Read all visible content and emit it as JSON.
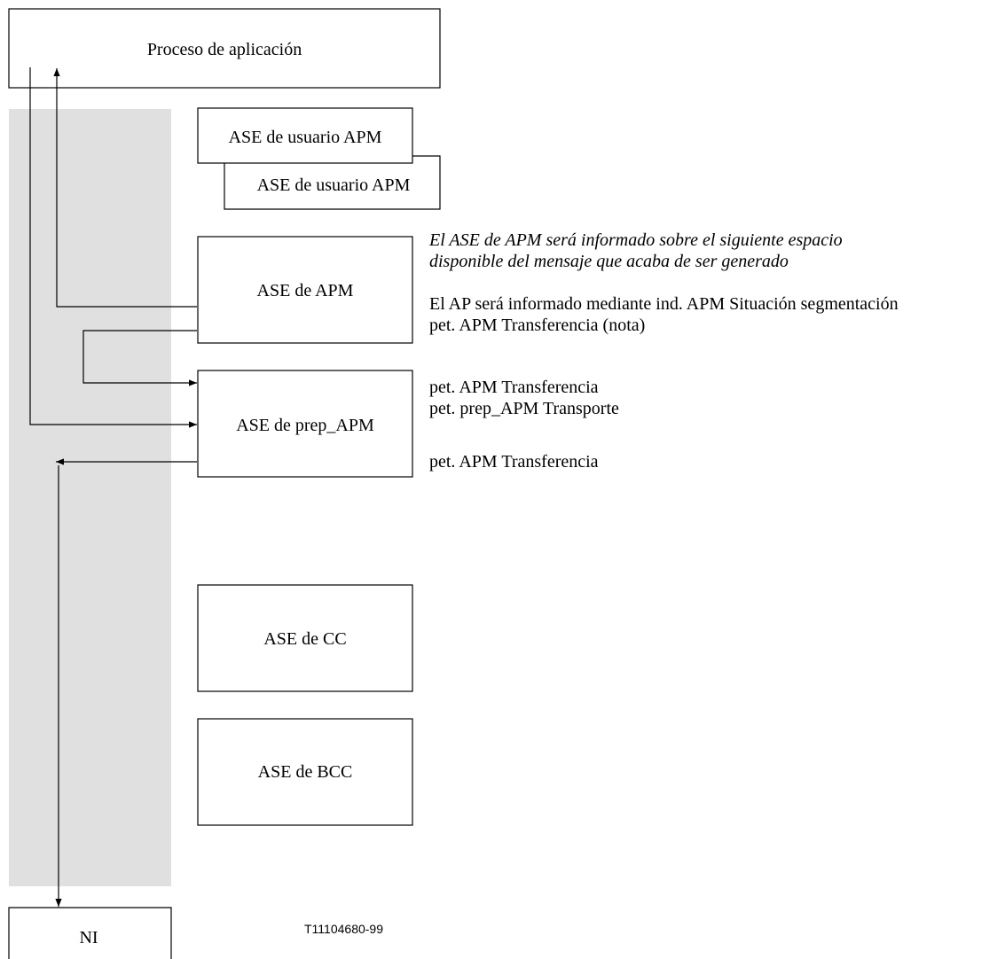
{
  "colors": {
    "band": "#e0e0e0",
    "stroke": "#000000",
    "background": "#ffffff"
  },
  "boxes": {
    "application_process": "Proceso de aplicación",
    "user_ase_1": "ASE de usuario APM",
    "user_ase_2": "ASE de usuario APM",
    "apm_ase": "ASE de APM",
    "prep_apm_ase": "ASE de prep_APM",
    "cc_ase": "ASE de CC",
    "bcc_ase": "ASE de BCC",
    "ni": "NI"
  },
  "annotations": {
    "italic_line_1": "El ASE de APM será informado sobre el siguiente espacio",
    "italic_line_2": "disponible del mensaje que acaba de ser generado",
    "ap_informed": "El AP será informado mediante ind. APM Situación segmentación",
    "transfer_request_note": "pet. APM Transferencia (nota)",
    "transfer_request_1": "pet. APM Transferencia",
    "prep_transport_request": "pet. prep_APM Transporte",
    "transfer_request_2": "pet. APM Transferencia"
  },
  "figure_ref": "T11104680-99"
}
